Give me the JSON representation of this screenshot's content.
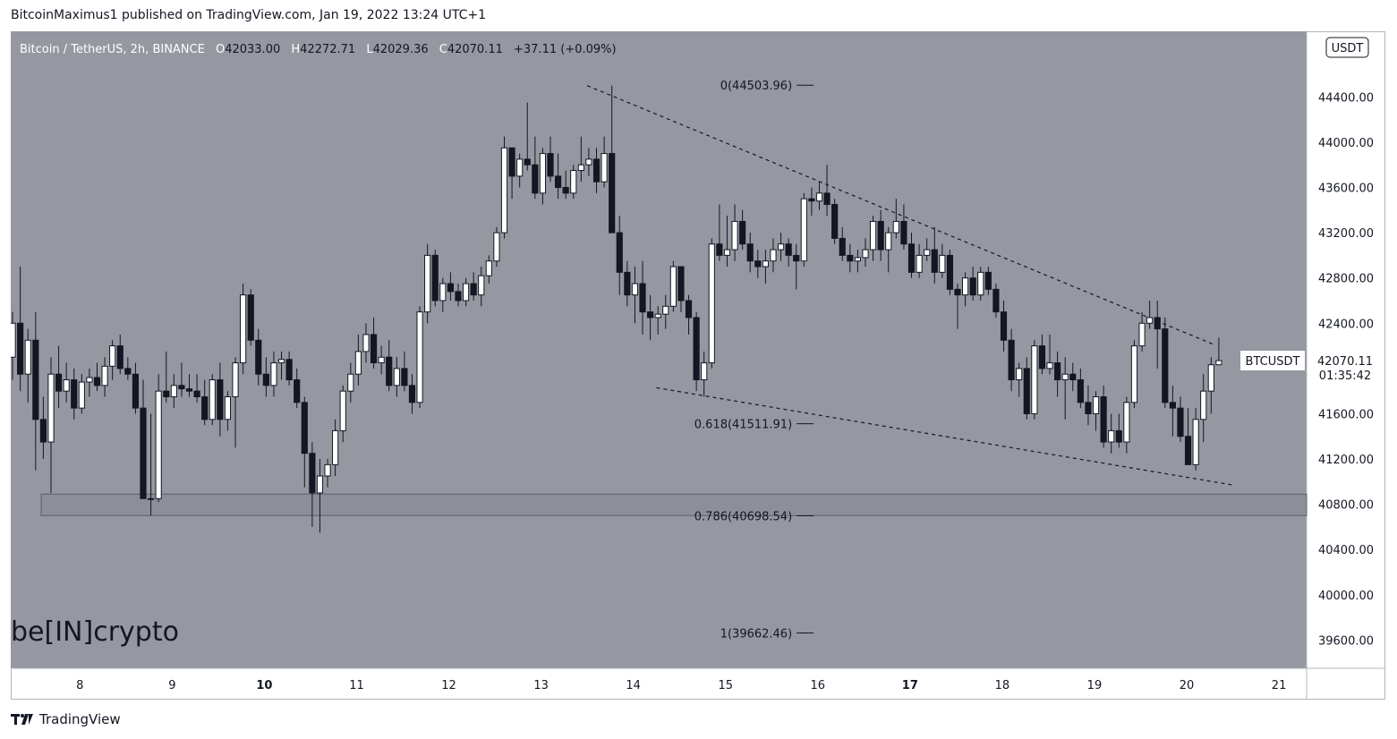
{
  "page": {
    "publisher_caption": "BitcoinMaximus1 published on TradingView.com, Jan 19, 2022 13:24 UTC+1",
    "footer_brand": "TradingView",
    "watermark": "be[IN]crypto"
  },
  "colors": {
    "plot_bg": "#9598a1",
    "axis_bg": "#ffffff",
    "up_fill": "#ffffff",
    "down_fill": "#131722",
    "wick": "#131722",
    "text": "#131722"
  },
  "chart_data": {
    "type": "candlestick",
    "symbol_line": {
      "name": "Bitcoin / TetherUS, 2h, BINANCE",
      "o_label": "O",
      "o_value": "42033.00",
      "h_label": "H",
      "h_value": "42272.71",
      "l_label": "L",
      "l_value": "42029.36",
      "c_label": "C",
      "c_value": "42070.11",
      "change": "+37.11 (+0.09%)"
    },
    "currency_badge": "USDT",
    "y_axis": {
      "min": 39350,
      "max": 44980,
      "ticks": [
        39600,
        40000,
        40400,
        40800,
        41200,
        41600,
        42000,
        42400,
        42800,
        43200,
        43600,
        44000,
        44400
      ],
      "tick_labels": [
        "39600.00",
        "40000.00",
        "40400.00",
        "40800.00",
        "41200.00",
        "41600.00",
        "42000.00",
        "42400.00",
        "42800.00",
        "43200.00",
        "43600.00",
        "44000.00",
        "44400.00"
      ]
    },
    "x_axis": {
      "start_day": 7.25,
      "end_day": 21.3,
      "ticks": [
        8,
        9,
        10,
        11,
        12,
        13,
        14,
        15,
        16,
        17,
        18,
        19,
        20,
        21
      ],
      "tick_labels": [
        "8",
        "9",
        "10",
        "11",
        "12",
        "13",
        "14",
        "15",
        "16",
        "17",
        "18",
        "19",
        "20",
        "21"
      ],
      "bold_ticks": [
        "10",
        "17"
      ]
    },
    "price_label": {
      "symbol": "BTCUSDT",
      "price": "42070.11",
      "countdown": "01:35:42",
      "value": 42070.11
    },
    "fib_levels": [
      {
        "label": "0(44503.96)",
        "value": 44503.96
      },
      {
        "label": "0.618(41511.91)",
        "value": 41511.91
      },
      {
        "label": "0.786(40698.54)",
        "value": 40698.54
      },
      {
        "label": "1(39662.46)",
        "value": 39662.46
      }
    ],
    "fib_anchor_day": 15.8,
    "support_zone": {
      "from_day": 7.58,
      "low": 40700,
      "high": 40890
    },
    "trendlines": [
      {
        "name": "resistance",
        "from": {
          "day": 13.5,
          "price": 44500
        },
        "to": {
          "day": 20.3,
          "price": 42210
        },
        "style": "dashed"
      },
      {
        "name": "support",
        "from": {
          "day": 14.25,
          "price": 41830
        },
        "to": {
          "day": 20.5,
          "price": 40970
        },
        "style": "dashed"
      }
    ],
    "candles": {
      "start_day": 7.27,
      "step_day": 0.0833,
      "ohlc": [
        [
          42100,
          42500,
          41900,
          42400
        ],
        [
          42400,
          42900,
          41800,
          41950
        ],
        [
          41950,
          42350,
          41700,
          42250
        ],
        [
          42250,
          42500,
          41100,
          41550
        ],
        [
          41550,
          41750,
          41200,
          41350
        ],
        [
          41350,
          42100,
          40900,
          41950
        ],
        [
          41950,
          42200,
          41650,
          41800
        ],
        [
          41800,
          42050,
          41700,
          41900
        ],
        [
          41900,
          42000,
          41550,
          41650
        ],
        [
          41650,
          41950,
          41600,
          41880
        ],
        [
          41880,
          42000,
          41750,
          41920
        ],
        [
          41920,
          42050,
          41800,
          41850
        ],
        [
          41850,
          42100,
          41750,
          42020
        ],
        [
          42020,
          42250,
          41900,
          42200
        ],
        [
          42200,
          42300,
          41950,
          42000
        ],
        [
          42000,
          42100,
          41900,
          41950
        ],
        [
          41950,
          42050,
          41600,
          41650
        ],
        [
          41650,
          41900,
          40850,
          40850
        ],
        [
          40850,
          41600,
          40700,
          40850
        ],
        [
          40850,
          41950,
          40820,
          41800
        ],
        [
          41800,
          42150,
          41700,
          41750
        ],
        [
          41750,
          41950,
          41650,
          41850
        ],
        [
          41850,
          42050,
          41750,
          41820
        ],
        [
          41820,
          41950,
          41750,
          41800
        ],
        [
          41800,
          41950,
          41700,
          41750
        ],
        [
          41750,
          41900,
          41500,
          41550
        ],
        [
          41550,
          41950,
          41500,
          41900
        ],
        [
          41900,
          42050,
          41400,
          41550
        ],
        [
          41550,
          41800,
          41450,
          41750
        ],
        [
          41750,
          42100,
          41300,
          42050
        ],
        [
          42050,
          42750,
          41950,
          42650
        ],
        [
          42650,
          42700,
          42200,
          42250
        ],
        [
          42250,
          42350,
          41850,
          41950
        ],
        [
          41950,
          42100,
          41750,
          41850
        ],
        [
          41850,
          42150,
          41750,
          42050
        ],
        [
          42050,
          42150,
          41900,
          42080
        ],
        [
          42080,
          42150,
          41850,
          41900
        ],
        [
          41900,
          42000,
          41650,
          41700
        ],
        [
          41700,
          41750,
          40950,
          41250
        ],
        [
          41250,
          41350,
          40600,
          40900
        ],
        [
          40900,
          41200,
          40550,
          41050
        ],
        [
          41050,
          41200,
          40950,
          41150
        ],
        [
          41150,
          41550,
          41050,
          41450
        ],
        [
          41450,
          41850,
          41350,
          41800
        ],
        [
          41800,
          42050,
          41700,
          41950
        ],
        [
          41950,
          42300,
          41850,
          42150
        ],
        [
          42150,
          42400,
          42050,
          42300
        ],
        [
          42300,
          42450,
          42000,
          42050
        ],
        [
          42050,
          42200,
          41950,
          42100
        ],
        [
          42100,
          42250,
          41800,
          41850
        ],
        [
          41850,
          42100,
          41750,
          42000
        ],
        [
          42000,
          42150,
          41800,
          41850
        ],
        [
          41850,
          41950,
          41600,
          41700
        ],
        [
          41700,
          42550,
          41650,
          42500
        ],
        [
          42500,
          43100,
          42400,
          43000
        ],
        [
          43000,
          43050,
          42550,
          42600
        ],
        [
          42600,
          42800,
          42500,
          42750
        ],
        [
          42750,
          42850,
          42600,
          42680
        ],
        [
          42680,
          42750,
          42550,
          42600
        ],
        [
          42600,
          42800,
          42550,
          42750
        ],
        [
          42750,
          42850,
          42600,
          42650
        ],
        [
          42650,
          42900,
          42550,
          42820
        ],
        [
          42820,
          43000,
          42750,
          42950
        ],
        [
          42950,
          43250,
          42900,
          43200
        ],
        [
          43200,
          44050,
          43150,
          43950
        ],
        [
          43950,
          43950,
          43500,
          43700
        ],
        [
          43700,
          43900,
          43600,
          43850
        ],
        [
          43850,
          44350,
          43750,
          43800
        ],
        [
          43800,
          44050,
          43500,
          43550
        ],
        [
          43550,
          43950,
          43450,
          43900
        ],
        [
          43900,
          44050,
          43650,
          43700
        ],
        [
          43700,
          43900,
          43500,
          43600
        ],
        [
          43600,
          43750,
          43500,
          43550
        ],
        [
          43550,
          43800,
          43500,
          43750
        ],
        [
          43750,
          44050,
          43650,
          43800
        ],
        [
          43800,
          43950,
          43700,
          43850
        ],
        [
          43850,
          43950,
          43550,
          43650
        ],
        [
          43650,
          44050,
          43600,
          43900
        ],
        [
          43900,
          44500,
          43200,
          43200
        ],
        [
          43200,
          43350,
          42650,
          42850
        ],
        [
          42850,
          42950,
          42550,
          42650
        ],
        [
          42650,
          42900,
          42400,
          42750
        ],
        [
          42750,
          42950,
          42300,
          42500
        ],
        [
          42500,
          42650,
          42250,
          42450
        ],
        [
          42450,
          42550,
          42300,
          42480
        ],
        [
          42480,
          42650,
          42350,
          42550
        ],
        [
          42550,
          42950,
          42500,
          42900
        ],
        [
          42900,
          42900,
          42500,
          42600
        ],
        [
          42600,
          42650,
          42300,
          42450
        ],
        [
          42450,
          42500,
          41800,
          41900
        ],
        [
          41900,
          42150,
          41750,
          42050
        ],
        [
          42050,
          43150,
          42000,
          43100
        ],
        [
          43100,
          43450,
          42950,
          43000
        ],
        [
          43000,
          43350,
          42900,
          43050
        ],
        [
          43050,
          43450,
          42950,
          43300
        ],
        [
          43300,
          43400,
          43050,
          43100
        ],
        [
          43100,
          43200,
          42850,
          42950
        ],
        [
          42950,
          43050,
          42800,
          42900
        ],
        [
          42900,
          43050,
          42750,
          42950
        ],
        [
          42950,
          43150,
          42850,
          43050
        ],
        [
          43050,
          43200,
          42950,
          43100
        ],
        [
          43100,
          43150,
          42900,
          43000
        ],
        [
          43000,
          43100,
          42700,
          42950
        ],
        [
          42950,
          43550,
          42900,
          43500
        ],
        [
          43500,
          43600,
          43350,
          43480
        ],
        [
          43480,
          43650,
          43400,
          43550
        ],
        [
          43550,
          43800,
          43350,
          43450
        ],
        [
          43450,
          43500,
          43100,
          43150
        ],
        [
          43150,
          43250,
          42950,
          43000
        ],
        [
          43000,
          43100,
          42850,
          42950
        ],
        [
          42950,
          43050,
          42850,
          42980
        ],
        [
          42980,
          43150,
          42900,
          43050
        ],
        [
          43050,
          43350,
          42950,
          43300
        ],
        [
          43300,
          43400,
          42950,
          43050
        ],
        [
          43050,
          43250,
          42850,
          43200
        ],
        [
          43200,
          43500,
          43150,
          43300
        ],
        [
          43300,
          43450,
          43050,
          43100
        ],
        [
          43100,
          43200,
          42800,
          42850
        ],
        [
          42850,
          43100,
          42800,
          43000
        ],
        [
          43000,
          43150,
          42950,
          43050
        ],
        [
          43050,
          43250,
          42750,
          42850
        ],
        [
          42850,
          43100,
          42800,
          43000
        ],
        [
          43000,
          43050,
          42650,
          42700
        ],
        [
          42700,
          42750,
          42350,
          42650
        ],
        [
          42650,
          42850,
          42550,
          42800
        ],
        [
          42800,
          42900,
          42600,
          42650
        ],
        [
          42650,
          42900,
          42600,
          42850
        ],
        [
          42850,
          42900,
          42650,
          42700
        ],
        [
          42700,
          42750,
          42450,
          42500
        ],
        [
          42500,
          42600,
          42150,
          42250
        ],
        [
          42250,
          42350,
          41800,
          41900
        ],
        [
          41900,
          42050,
          41750,
          42000
        ],
        [
          42000,
          42100,
          41550,
          41600
        ],
        [
          41600,
          42250,
          41550,
          42200
        ],
        [
          42200,
          42300,
          41950,
          42000
        ],
        [
          42000,
          42300,
          41950,
          42050
        ],
        [
          42050,
          42150,
          41750,
          41900
        ],
        [
          41900,
          42100,
          41550,
          41950
        ],
        [
          41950,
          42050,
          41800,
          41900
        ],
        [
          41900,
          42000,
          41650,
          41700
        ],
        [
          41700,
          41850,
          41500,
          41600
        ],
        [
          41600,
          41800,
          41450,
          41750
        ],
        [
          41750,
          41850,
          41300,
          41350
        ],
        [
          41350,
          41600,
          41250,
          41450
        ],
        [
          41450,
          41600,
          41300,
          41350
        ],
        [
          41350,
          41750,
          41250,
          41700
        ],
        [
          41700,
          42250,
          41650,
          42200
        ],
        [
          42200,
          42500,
          42150,
          42400
        ],
        [
          42400,
          42600,
          42350,
          42450
        ],
        [
          42450,
          42600,
          42000,
          42350
        ],
        [
          42350,
          42450,
          41650,
          41700
        ],
        [
          41700,
          41850,
          41400,
          41650
        ],
        [
          41650,
          41750,
          41350,
          41400
        ],
        [
          41400,
          41650,
          41150,
          41150
        ],
        [
          41150,
          41650,
          41100,
          41550
        ],
        [
          41550,
          41950,
          41350,
          41800
        ],
        [
          41800,
          42100,
          41600,
          42033
        ],
        [
          42033,
          42273,
          42029,
          42070
        ]
      ]
    }
  }
}
